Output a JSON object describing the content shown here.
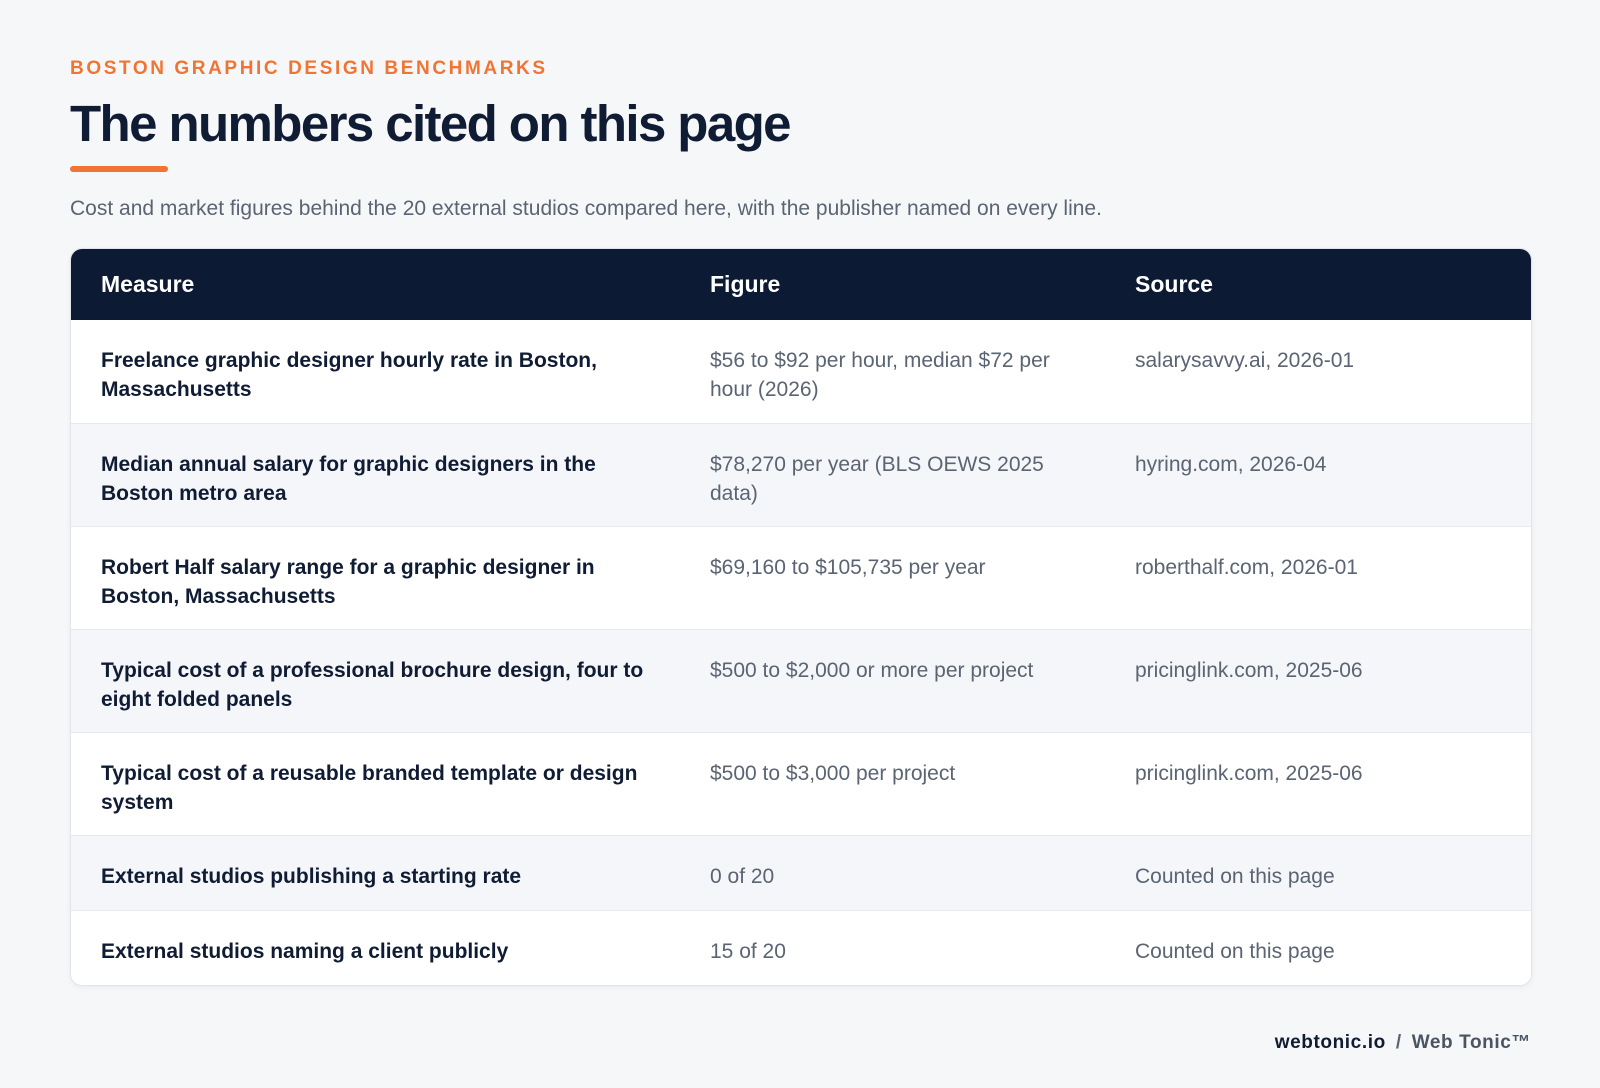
{
  "header": {
    "eyebrow": "BOSTON GRAPHIC DESIGN BENCHMARKS",
    "title": "The numbers cited on this page",
    "subtitle": "Cost and market figures behind the 20 external studios compared here, with the publisher named on every line."
  },
  "table": {
    "columns": [
      "Measure",
      "Figure",
      "Source"
    ],
    "rows": [
      {
        "measure": "Freelance graphic designer hourly rate in Boston, Massachusetts",
        "figure": "$56 to $92 per hour, median $72 per hour (2026)",
        "source": "salarysavvy.ai, 2026-01"
      },
      {
        "measure": "Median annual salary for graphic designers in the Boston metro area",
        "figure": "$78,270 per year (BLS OEWS 2025 data)",
        "source": "hyring.com, 2026-04"
      },
      {
        "measure": "Robert Half salary range for a graphic designer in Boston, Massachusetts",
        "figure": "$69,160 to $105,735 per year",
        "source": "roberthalf.com, 2026-01"
      },
      {
        "measure": "Typical cost of a professional brochure design, four to eight folded panels",
        "figure": "$500 to $2,000 or more per project",
        "source": "pricinglink.com, 2025-06"
      },
      {
        "measure": "Typical cost of a reusable branded template or design system",
        "figure": "$500 to $3,000 per project",
        "source": "pricinglink.com, 2025-06"
      },
      {
        "measure": "External studios publishing a starting rate",
        "figure": "0 of 20",
        "source": "Counted on this page"
      },
      {
        "measure": "External studios naming a client publicly",
        "figure": "15 of 20",
        "source": "Counted on this page"
      }
    ]
  },
  "footer": {
    "domain": "webtonic.io",
    "separator": "/",
    "brand": "Web Tonic™"
  },
  "colors": {
    "accent": "#f07533",
    "header_bg": "#0c1a33",
    "page_bg": "#f6f7f9"
  }
}
